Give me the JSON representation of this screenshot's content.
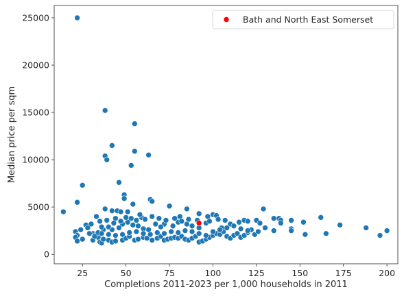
{
  "chart_data": {
    "type": "scatter",
    "title": "",
    "xlabel": "Completions 2011-2023 per 1,000 households in 2011",
    "ylabel": "Median price per sqm",
    "xlim": [
      8.75,
      206.25
    ],
    "ylim": [
      -1000,
      26300
    ],
    "xticks": [
      25,
      50,
      75,
      100,
      125,
      150,
      175,
      200
    ],
    "yticks": [
      0,
      5000,
      10000,
      15000,
      20000,
      25000
    ],
    "grid": false,
    "legend_position": "top-right",
    "colors": {
      "points": "#1f77b4",
      "highlight": "#ff0000",
      "axes": "#262626"
    },
    "series": [
      {
        "points": [
          [
            22,
            25000
          ],
          [
            38,
            15200
          ],
          [
            55,
            13800
          ],
          [
            42,
            11500
          ],
          [
            55,
            10900
          ],
          [
            38,
            10400
          ],
          [
            63,
            10500
          ],
          [
            39,
            10000
          ],
          [
            53,
            9400
          ],
          [
            46,
            7600
          ],
          [
            25,
            7300
          ],
          [
            64,
            5800
          ],
          [
            49,
            6300
          ],
          [
            49,
            5900
          ],
          [
            54,
            5300
          ],
          [
            22,
            5500
          ],
          [
            65,
            5600
          ],
          [
            75,
            5100
          ],
          [
            42,
            4600
          ],
          [
            45,
            4600
          ],
          [
            47,
            4500
          ],
          [
            51,
            4500
          ],
          [
            38,
            4800
          ],
          [
            14,
            4500
          ],
          [
            85,
            4800
          ],
          [
            129,
            4800
          ],
          [
            162,
            3900
          ],
          [
            92,
            4300
          ],
          [
            100,
            4200
          ],
          [
            102,
            4100
          ],
          [
            97,
            4000
          ],
          [
            81,
            4000
          ],
          [
            59,
            3900
          ],
          [
            53,
            3800
          ],
          [
            44,
            3800
          ],
          [
            33,
            4000
          ],
          [
            27,
            3100
          ],
          [
            30,
            3200
          ],
          [
            28,
            2800
          ],
          [
            24,
            2600
          ],
          [
            21,
            2400
          ],
          [
            22,
            2000
          ],
          [
            21,
            1800
          ],
          [
            22,
            1400
          ],
          [
            25,
            1600
          ],
          [
            31,
            2200
          ],
          [
            33,
            2100
          ],
          [
            34,
            1800
          ],
          [
            31,
            1500
          ],
          [
            35,
            1300
          ],
          [
            36,
            1200
          ],
          [
            37,
            1600
          ],
          [
            40,
            1500
          ],
          [
            42,
            1300
          ],
          [
            44,
            1400
          ],
          [
            48,
            1500
          ],
          [
            50,
            1700
          ],
          [
            52,
            1900
          ],
          [
            55,
            1500
          ],
          [
            57,
            1600
          ],
          [
            60,
            1800
          ],
          [
            62,
            1700
          ],
          [
            65,
            1500
          ],
          [
            68,
            1700
          ],
          [
            70,
            1900
          ],
          [
            72,
            1500
          ],
          [
            74,
            1600
          ],
          [
            76,
            1700
          ],
          [
            78,
            1800
          ],
          [
            80,
            1700
          ],
          [
            82,
            1900
          ],
          [
            84,
            1600
          ],
          [
            86,
            1500
          ],
          [
            88,
            1700
          ],
          [
            90,
            1900
          ],
          [
            92,
            1300
          ],
          [
            94,
            1400
          ],
          [
            96,
            1600
          ],
          [
            98,
            1800
          ],
          [
            100,
            2000
          ],
          [
            102,
            2200
          ],
          [
            104,
            2100
          ],
          [
            106,
            2400
          ],
          [
            108,
            1900
          ],
          [
            110,
            1700
          ],
          [
            112,
            2000
          ],
          [
            114,
            2200
          ],
          [
            116,
            1800
          ],
          [
            118,
            2000
          ],
          [
            120,
            2300
          ],
          [
            122,
            2600
          ],
          [
            124,
            2100
          ],
          [
            126,
            2400
          ],
          [
            115,
            3400
          ],
          [
            118,
            3600
          ],
          [
            120,
            3500
          ],
          [
            125,
            3600
          ],
          [
            127,
            3300
          ],
          [
            135,
            3800
          ],
          [
            138,
            3800
          ],
          [
            139,
            3600
          ],
          [
            139,
            3300
          ],
          [
            145,
            3600
          ],
          [
            152,
            3400
          ],
          [
            145,
            2700
          ],
          [
            145,
            2500
          ],
          [
            153,
            2100
          ],
          [
            165,
            2200
          ],
          [
            173,
            3100
          ],
          [
            188,
            2800
          ],
          [
            196,
            2000
          ],
          [
            200,
            2500
          ],
          [
            135,
            2500
          ],
          [
            130,
            2800
          ],
          [
            105,
            2800
          ],
          [
            110,
            3200
          ],
          [
            96,
            3300
          ],
          [
            92,
            2800
          ],
          [
            88,
            3000
          ],
          [
            85,
            3200
          ],
          [
            80,
            3400
          ],
          [
            77,
            3000
          ],
          [
            72,
            3200
          ],
          [
            70,
            2900
          ],
          [
            67,
            3200
          ],
          [
            63,
            2600
          ],
          [
            60,
            2700
          ],
          [
            57,
            3000
          ],
          [
            54,
            3100
          ],
          [
            51,
            3400
          ],
          [
            48,
            3200
          ],
          [
            46,
            2800
          ],
          [
            42,
            2600
          ],
          [
            40,
            2900
          ],
          [
            37,
            2600
          ],
          [
            35,
            3500
          ],
          [
            34,
            2300
          ],
          [
            29,
            2200
          ],
          [
            32,
            1900
          ],
          [
            36,
            2200
          ],
          [
            40,
            2100
          ],
          [
            44,
            2000
          ],
          [
            48,
            2100
          ],
          [
            52,
            2300
          ],
          [
            56,
            2400
          ],
          [
            60,
            2200
          ],
          [
            64,
            2100
          ],
          [
            68,
            2300
          ],
          [
            72,
            2200
          ],
          [
            76,
            2400
          ],
          [
            80,
            2300
          ],
          [
            84,
            2500
          ],
          [
            88,
            2400
          ],
          [
            92,
            2200
          ],
          [
            96,
            2000
          ],
          [
            100,
            2400
          ],
          [
            104,
            2600
          ],
          [
            108,
            2800
          ],
          [
            112,
            3000
          ],
          [
            116,
            2700
          ],
          [
            120,
            2500
          ],
          [
            107,
            3600
          ],
          [
            103,
            3700
          ],
          [
            98,
            3500
          ],
          [
            91,
            3600
          ],
          [
            86,
            3700
          ],
          [
            82,
            3500
          ],
          [
            78,
            3800
          ],
          [
            73,
            3600
          ],
          [
            69,
            3800
          ],
          [
            65,
            4000
          ],
          [
            61,
            3700
          ],
          [
            58,
            4200
          ],
          [
            56,
            3600
          ],
          [
            50,
            3900
          ],
          [
            47,
            3500
          ],
          [
            43,
            3300
          ],
          [
            39,
            3600
          ],
          [
            36,
            2900
          ]
        ]
      },
      {
        "name": "Bath and North East Somerset",
        "points": [
          [
            92,
            3300
          ]
        ]
      }
    ]
  }
}
